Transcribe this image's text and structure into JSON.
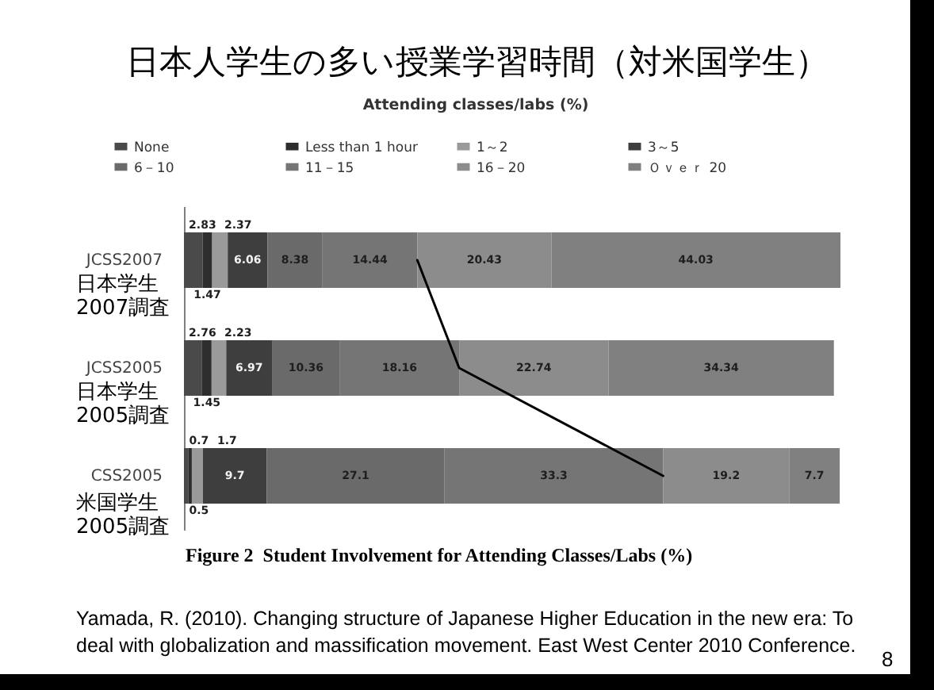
{
  "chart_data": {
    "type": "bar",
    "orientation": "horizontal",
    "stacked": true,
    "title": "日本人学生の多い授業学習時間（対米国学生）",
    "subtitle": "Attending classes/labs (%)",
    "categories": [
      "JCSS2007",
      "JCSS2005",
      "CSS2005"
    ],
    "series": [
      {
        "name": "None",
        "color": "#4a4a4a",
        "values": [
          2.83,
          2.76,
          0.7
        ],
        "value_labels": [
          "2.83",
          "2.76",
          "0.7"
        ]
      },
      {
        "name": "Less than 1 hour",
        "color": "#2e2e2e",
        "values": [
          1.47,
          1.45,
          0.5
        ],
        "value_labels": [
          "1.47",
          "1.45",
          "0.5"
        ]
      },
      {
        "name": "1～2",
        "color": "#9a9a9a",
        "values": [
          2.37,
          2.23,
          1.7
        ],
        "value_labels": [
          "2.37",
          "2.23",
          "1.7"
        ]
      },
      {
        "name": "3～5",
        "color": "#3e3e3e",
        "values": [
          6.06,
          6.97,
          9.7
        ],
        "value_labels": [
          "6.06",
          "6.97",
          "9.7"
        ]
      },
      {
        "name": "6－10",
        "color": "#6a6a6a",
        "values": [
          8.38,
          10.36,
          27.1
        ],
        "value_labels": [
          "8.38",
          "10.36",
          "27.1"
        ]
      },
      {
        "name": "11－15",
        "color": "#757575",
        "values": [
          14.44,
          18.16,
          33.3
        ],
        "value_labels": [
          "14.44",
          "18.16",
          "33.3"
        ]
      },
      {
        "name": "16－20",
        "color": "#8c8c8c",
        "values": [
          20.43,
          22.74,
          19.2
        ],
        "value_labels": [
          "20.43",
          "22.74",
          "19.2"
        ]
      },
      {
        "name": "Ｏｖｅｒ 20",
        "color": "#808080",
        "values": [
          44.03,
          34.34,
          7.7
        ],
        "value_labels": [
          "44.03",
          "34.34",
          "7.7"
        ]
      },
      {
        "type": "line",
        "color": "#000000",
        "values": [
          35.55,
          41.93,
          73
        ]
      }
    ],
    "legend": "top",
    "tick_labels": "y",
    "annotations": [
      "Figure 2  Student Involvement for Attending Classes/Labs (%)",
      "Yamada, R. (2010). Changing structure of Japanese Higher Education in the new era: To deal with globalization and massification movement. East West Center 2010 Conference.",
      "8",
      "日本学生\n2007調査",
      "日本学生\n2005調査",
      "米国学生\n2005調査"
    ]
  }
}
